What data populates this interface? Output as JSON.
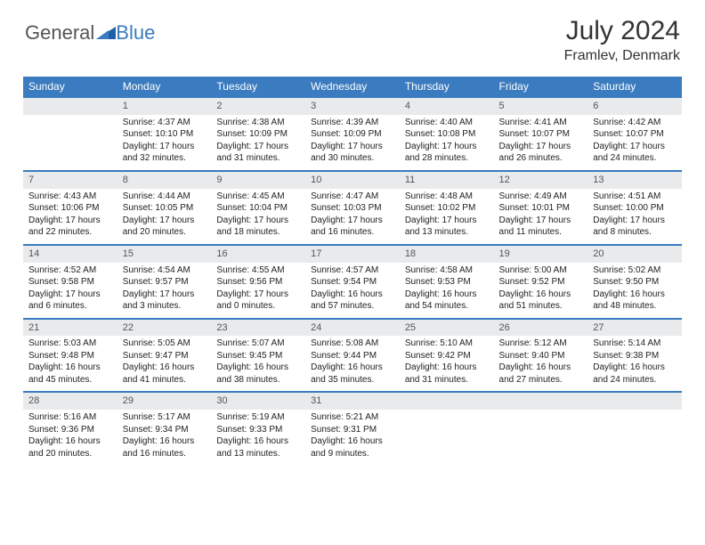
{
  "brand": {
    "part1": "General",
    "part2": "Blue"
  },
  "title": "July 2024",
  "location": "Framlev, Denmark",
  "colors": {
    "header_bg": "#3b7bbf",
    "header_text": "#ffffff",
    "daynum_bg": "#e8eaec",
    "daynum_text": "#555555",
    "body_text": "#222222",
    "rule": "#3b7bbf",
    "logo_gray": "#555555",
    "logo_blue": "#3b7bbf"
  },
  "dayHeaders": [
    "Sunday",
    "Monday",
    "Tuesday",
    "Wednesday",
    "Thursday",
    "Friday",
    "Saturday"
  ],
  "weeks": [
    {
      "nums": [
        "",
        "1",
        "2",
        "3",
        "4",
        "5",
        "6"
      ],
      "cells": [
        null,
        {
          "sr": "Sunrise: 4:37 AM",
          "ss": "Sunset: 10:10 PM",
          "dl": "Daylight: 17 hours and 32 minutes."
        },
        {
          "sr": "Sunrise: 4:38 AM",
          "ss": "Sunset: 10:09 PM",
          "dl": "Daylight: 17 hours and 31 minutes."
        },
        {
          "sr": "Sunrise: 4:39 AM",
          "ss": "Sunset: 10:09 PM",
          "dl": "Daylight: 17 hours and 30 minutes."
        },
        {
          "sr": "Sunrise: 4:40 AM",
          "ss": "Sunset: 10:08 PM",
          "dl": "Daylight: 17 hours and 28 minutes."
        },
        {
          "sr": "Sunrise: 4:41 AM",
          "ss": "Sunset: 10:07 PM",
          "dl": "Daylight: 17 hours and 26 minutes."
        },
        {
          "sr": "Sunrise: 4:42 AM",
          "ss": "Sunset: 10:07 PM",
          "dl": "Daylight: 17 hours and 24 minutes."
        }
      ]
    },
    {
      "nums": [
        "7",
        "8",
        "9",
        "10",
        "11",
        "12",
        "13"
      ],
      "cells": [
        {
          "sr": "Sunrise: 4:43 AM",
          "ss": "Sunset: 10:06 PM",
          "dl": "Daylight: 17 hours and 22 minutes."
        },
        {
          "sr": "Sunrise: 4:44 AM",
          "ss": "Sunset: 10:05 PM",
          "dl": "Daylight: 17 hours and 20 minutes."
        },
        {
          "sr": "Sunrise: 4:45 AM",
          "ss": "Sunset: 10:04 PM",
          "dl": "Daylight: 17 hours and 18 minutes."
        },
        {
          "sr": "Sunrise: 4:47 AM",
          "ss": "Sunset: 10:03 PM",
          "dl": "Daylight: 17 hours and 16 minutes."
        },
        {
          "sr": "Sunrise: 4:48 AM",
          "ss": "Sunset: 10:02 PM",
          "dl": "Daylight: 17 hours and 13 minutes."
        },
        {
          "sr": "Sunrise: 4:49 AM",
          "ss": "Sunset: 10:01 PM",
          "dl": "Daylight: 17 hours and 11 minutes."
        },
        {
          "sr": "Sunrise: 4:51 AM",
          "ss": "Sunset: 10:00 PM",
          "dl": "Daylight: 17 hours and 8 minutes."
        }
      ]
    },
    {
      "nums": [
        "14",
        "15",
        "16",
        "17",
        "18",
        "19",
        "20"
      ],
      "cells": [
        {
          "sr": "Sunrise: 4:52 AM",
          "ss": "Sunset: 9:58 PM",
          "dl": "Daylight: 17 hours and 6 minutes."
        },
        {
          "sr": "Sunrise: 4:54 AM",
          "ss": "Sunset: 9:57 PM",
          "dl": "Daylight: 17 hours and 3 minutes."
        },
        {
          "sr": "Sunrise: 4:55 AM",
          "ss": "Sunset: 9:56 PM",
          "dl": "Daylight: 17 hours and 0 minutes."
        },
        {
          "sr": "Sunrise: 4:57 AM",
          "ss": "Sunset: 9:54 PM",
          "dl": "Daylight: 16 hours and 57 minutes."
        },
        {
          "sr": "Sunrise: 4:58 AM",
          "ss": "Sunset: 9:53 PM",
          "dl": "Daylight: 16 hours and 54 minutes."
        },
        {
          "sr": "Sunrise: 5:00 AM",
          "ss": "Sunset: 9:52 PM",
          "dl": "Daylight: 16 hours and 51 minutes."
        },
        {
          "sr": "Sunrise: 5:02 AM",
          "ss": "Sunset: 9:50 PM",
          "dl": "Daylight: 16 hours and 48 minutes."
        }
      ]
    },
    {
      "nums": [
        "21",
        "22",
        "23",
        "24",
        "25",
        "26",
        "27"
      ],
      "cells": [
        {
          "sr": "Sunrise: 5:03 AM",
          "ss": "Sunset: 9:48 PM",
          "dl": "Daylight: 16 hours and 45 minutes."
        },
        {
          "sr": "Sunrise: 5:05 AM",
          "ss": "Sunset: 9:47 PM",
          "dl": "Daylight: 16 hours and 41 minutes."
        },
        {
          "sr": "Sunrise: 5:07 AM",
          "ss": "Sunset: 9:45 PM",
          "dl": "Daylight: 16 hours and 38 minutes."
        },
        {
          "sr": "Sunrise: 5:08 AM",
          "ss": "Sunset: 9:44 PM",
          "dl": "Daylight: 16 hours and 35 minutes."
        },
        {
          "sr": "Sunrise: 5:10 AM",
          "ss": "Sunset: 9:42 PM",
          "dl": "Daylight: 16 hours and 31 minutes."
        },
        {
          "sr": "Sunrise: 5:12 AM",
          "ss": "Sunset: 9:40 PM",
          "dl": "Daylight: 16 hours and 27 minutes."
        },
        {
          "sr": "Sunrise: 5:14 AM",
          "ss": "Sunset: 9:38 PM",
          "dl": "Daylight: 16 hours and 24 minutes."
        }
      ]
    },
    {
      "nums": [
        "28",
        "29",
        "30",
        "31",
        "",
        "",
        ""
      ],
      "cells": [
        {
          "sr": "Sunrise: 5:16 AM",
          "ss": "Sunset: 9:36 PM",
          "dl": "Daylight: 16 hours and 20 minutes."
        },
        {
          "sr": "Sunrise: 5:17 AM",
          "ss": "Sunset: 9:34 PM",
          "dl": "Daylight: 16 hours and 16 minutes."
        },
        {
          "sr": "Sunrise: 5:19 AM",
          "ss": "Sunset: 9:33 PM",
          "dl": "Daylight: 16 hours and 13 minutes."
        },
        {
          "sr": "Sunrise: 5:21 AM",
          "ss": "Sunset: 9:31 PM",
          "dl": "Daylight: 16 hours and 9 minutes."
        },
        null,
        null,
        null
      ]
    }
  ]
}
